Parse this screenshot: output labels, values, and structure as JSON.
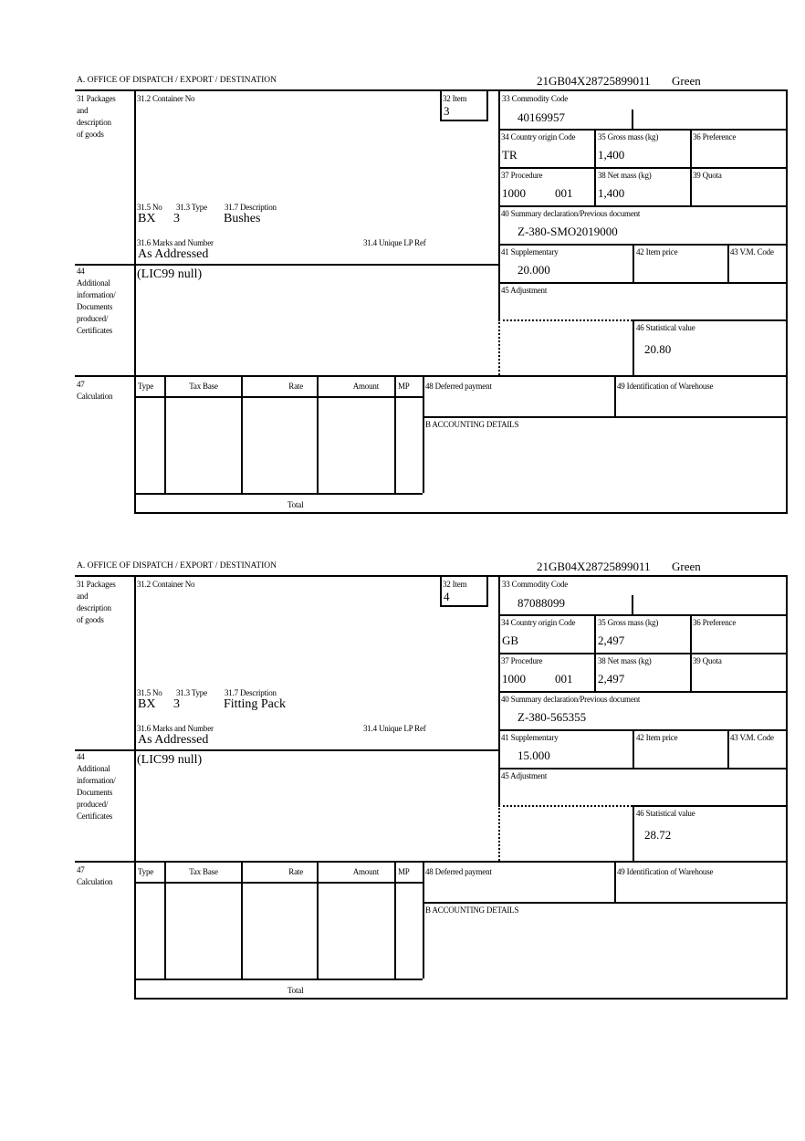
{
  "labels": {
    "office": "A.  OFFICE OF DISPATCH / EXPORT / DESTINATION",
    "packages": [
      "31 Packages",
      "and",
      "description",
      "of goods"
    ],
    "container_no": "31.2 Container No",
    "item": "32 Item",
    "no": "31.5 No",
    "type": "31.3 Type",
    "description": "31.7 Description",
    "marks": "31.6 Marks and Number",
    "unique_lp_ref": "31.4 Unique LP Ref",
    "additional": [
      "44",
      "Additional",
      "information/",
      "Documents",
      "produced/",
      "Certificates"
    ],
    "commodity_code": "33 Commodity Code",
    "country_origin": "34 Country origin Code",
    "gross_mass": "35 Gross mass (kg)",
    "preference": "36 Preference",
    "procedure": "37 Procedure",
    "net_mass": "38 Net mass (kg)",
    "quota": "39 Quota",
    "summary_declaration": "40 Summary declaration/Previous document",
    "supplementary": "41 Supplementary",
    "item_price": "42 Item price",
    "vm_code": "43 V.M. Code",
    "adjustment": "45 Adjustment",
    "statistical_value": "46 Statistical value",
    "calculation": [
      "47",
      "Calculation"
    ],
    "calc_type": "Type",
    "calc_tax_base": "Tax Base",
    "calc_rate": "Rate",
    "calc_amount": "Amount",
    "calc_mp": "MP",
    "deferred_payment": "48 Deferred payment",
    "warehouse": "49 Identification of Warehouse",
    "accounting": "B ACCOUNTING DETAILS",
    "total": "Total"
  },
  "items": [
    {
      "reference": "21GB04X28725899011",
      "route": "Green",
      "item_no": "3",
      "package_no": "BX",
      "package_type": "3",
      "description": "Bushes",
      "marks": "As Addressed",
      "additional_info": "(LIC99 null)",
      "commodity_code": "40169957",
      "country_origin": "TR",
      "gross_mass": "1,400",
      "procedure": "1000",
      "procedure_extra": "001",
      "net_mass": "1,400",
      "summary_declaration": "Z-380-SMO2019000",
      "supplementary": "20.000",
      "statistical_value": "20.80"
    },
    {
      "reference": "21GB04X28725899011",
      "route": "Green",
      "item_no": "4",
      "package_no": "BX",
      "package_type": "3",
      "description": "Fitting Pack",
      "marks": "As Addressed",
      "additional_info": "(LIC99 null)",
      "commodity_code": "87088099",
      "country_origin": "GB",
      "gross_mass": "2,497",
      "procedure": "1000",
      "procedure_extra": "001",
      "net_mass": "2,497",
      "summary_declaration": "Z-380-565355",
      "supplementary": "15.000",
      "statistical_value": "28.72"
    }
  ]
}
